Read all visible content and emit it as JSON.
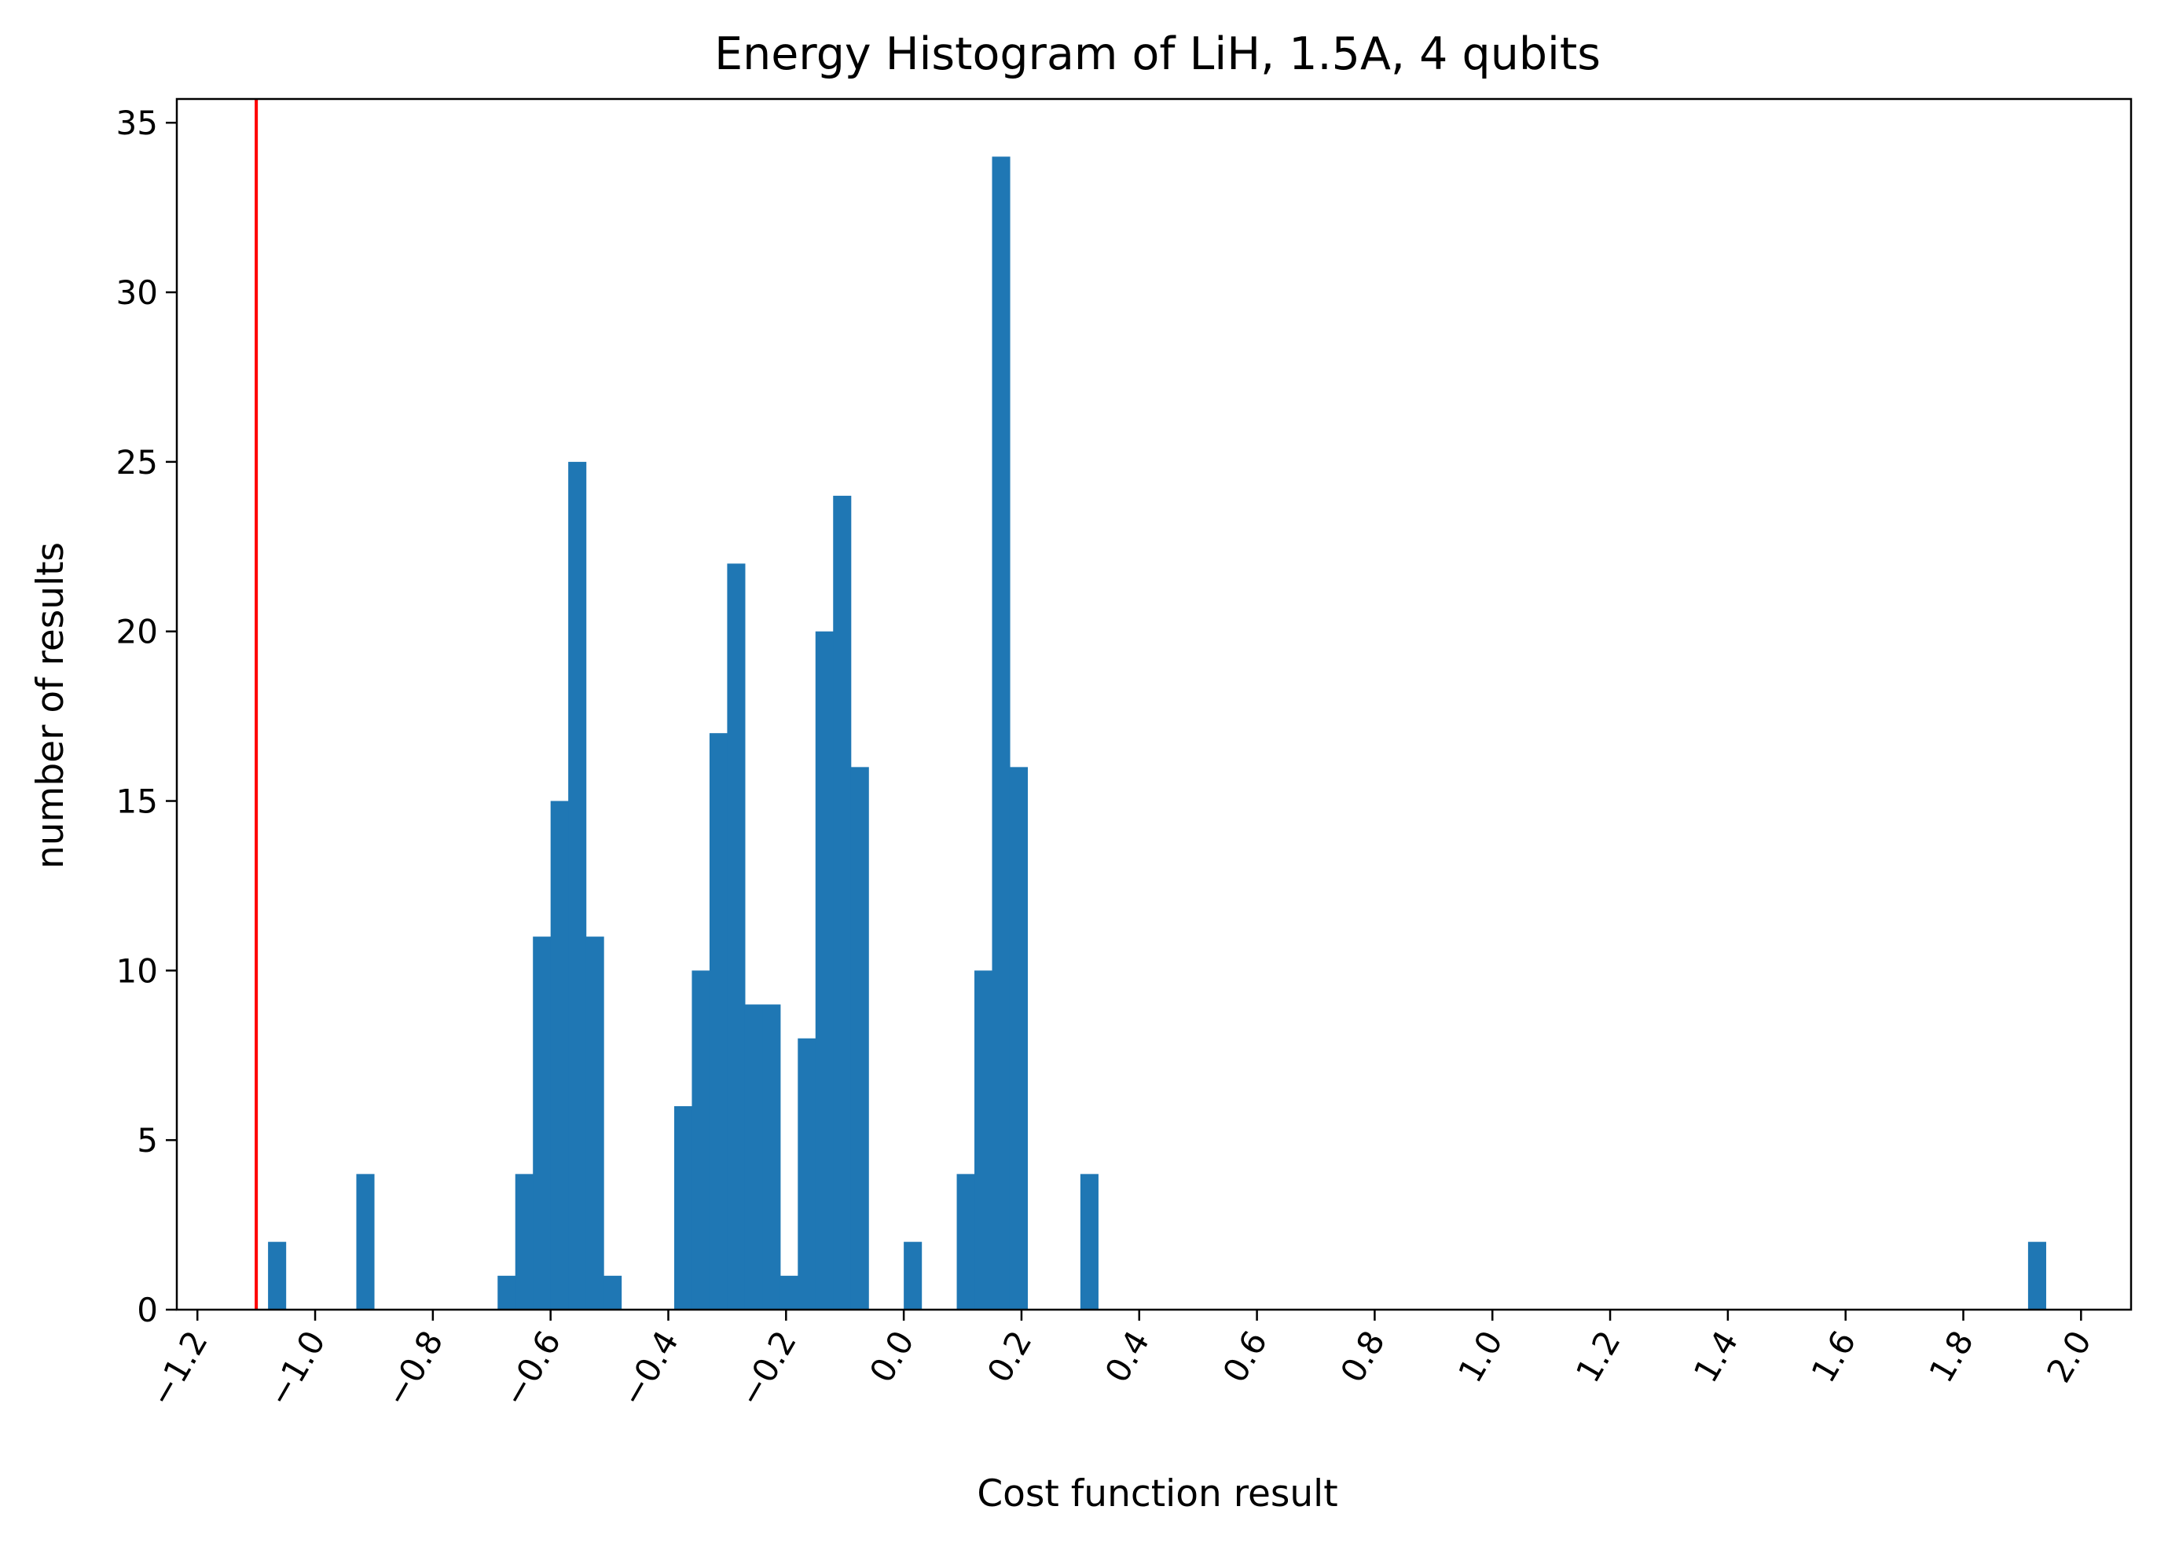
{
  "chart_data": {
    "type": "bar",
    "title": "Energy Histogram of LiH, 1.5A, 4 qubits",
    "xlabel": "Cost function result",
    "ylabel": "number of results",
    "xlim": [
      -1.235,
      2.085
    ],
    "ylim": [
      0,
      35.7
    ],
    "bin_width": 0.03,
    "bar_color": "#1f77b4",
    "reference_line": {
      "x": -1.1,
      "color": "#ff0000"
    },
    "x_ticks": [
      -1.2,
      -1.0,
      -0.8,
      -0.6,
      -0.4,
      -0.2,
      0.0,
      0.2,
      0.4,
      0.6,
      0.8,
      1.0,
      1.2,
      1.4,
      1.6,
      1.8,
      2.0
    ],
    "x_tick_labels": [
      "−1.2",
      "−1.0",
      "−0.8",
      "−0.6",
      "−0.4",
      "−0.2",
      "0.0",
      "0.2",
      "0.4",
      "0.6",
      "0.8",
      "1.0",
      "1.2",
      "1.4",
      "1.6",
      "1.8",
      "2.0"
    ],
    "y_ticks": [
      0,
      5,
      10,
      15,
      20,
      25,
      30,
      35
    ],
    "y_tick_labels": [
      "0",
      "5",
      "10",
      "15",
      "20",
      "25",
      "30",
      "35"
    ],
    "grid": false,
    "bins": [
      {
        "x": -1.065,
        "count": 2
      },
      {
        "x": -0.915,
        "count": 4
      },
      {
        "x": -0.675,
        "count": 1
      },
      {
        "x": -0.645,
        "count": 4
      },
      {
        "x": -0.615,
        "count": 11
      },
      {
        "x": -0.585,
        "count": 15
      },
      {
        "x": -0.555,
        "count": 25
      },
      {
        "x": -0.525,
        "count": 11
      },
      {
        "x": -0.495,
        "count": 1
      },
      {
        "x": -0.375,
        "count": 6
      },
      {
        "x": -0.345,
        "count": 10
      },
      {
        "x": -0.315,
        "count": 17
      },
      {
        "x": -0.285,
        "count": 22
      },
      {
        "x": -0.255,
        "count": 9
      },
      {
        "x": -0.225,
        "count": 9
      },
      {
        "x": -0.195,
        "count": 1
      },
      {
        "x": -0.165,
        "count": 8
      },
      {
        "x": -0.135,
        "count": 20
      },
      {
        "x": -0.105,
        "count": 24
      },
      {
        "x": -0.075,
        "count": 16
      },
      {
        "x": 0.015,
        "count": 2
      },
      {
        "x": 0.105,
        "count": 4
      },
      {
        "x": 0.135,
        "count": 10
      },
      {
        "x": 0.165,
        "count": 34
      },
      {
        "x": 0.195,
        "count": 16
      },
      {
        "x": 0.315,
        "count": 4
      },
      {
        "x": 1.925,
        "count": 2
      }
    ]
  }
}
